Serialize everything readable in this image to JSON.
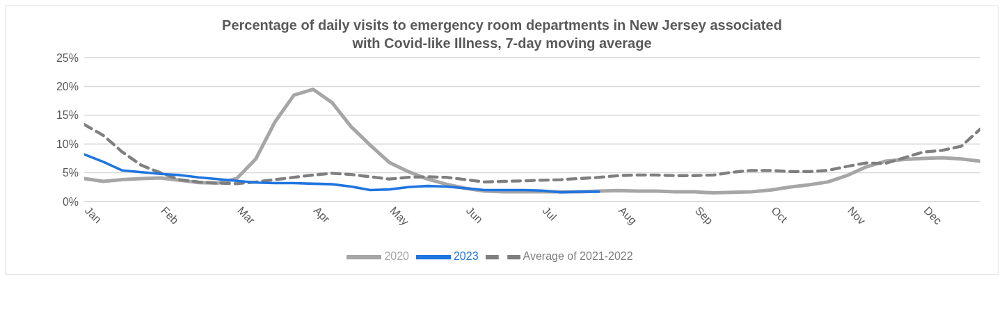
{
  "chart_data": {
    "type": "line",
    "title": "Percentage of daily visits to emergency room departments in New Jersey associated with Covid-like Illness, 7-day moving average",
    "categories": [
      "Jan",
      null,
      null,
      null,
      "Feb",
      null,
      null,
      null,
      "Mar",
      null,
      null,
      null,
      "Apr",
      null,
      null,
      null,
      "May",
      null,
      null,
      null,
      "Jun",
      null,
      null,
      null,
      "Jul",
      null,
      null,
      null,
      "Aug",
      null,
      null,
      null,
      "Sep",
      null,
      null,
      null,
      "Oct",
      null,
      null,
      null,
      "Nov",
      null,
      null,
      null,
      "Dec",
      null,
      null,
      null
    ],
    "ylim": [
      0,
      25
    ],
    "yticks": [
      {
        "value": 0,
        "label": "0%"
      },
      {
        "value": 5,
        "label": "5%"
      },
      {
        "value": 10,
        "label": "10%"
      },
      {
        "value": 15,
        "label": "15%"
      },
      {
        "value": 20,
        "label": "20%"
      },
      {
        "value": 25,
        "label": "25%"
      }
    ],
    "grid": "y",
    "legend": "bottom",
    "marker": "none",
    "series": [
      {
        "name": "2020",
        "color": "#a6a6a6",
        "line_style": "solid",
        "values": [
          4.0,
          3.5,
          3.8,
          4.0,
          4.1,
          3.7,
          3.3,
          3.2,
          4.0,
          7.4,
          13.8,
          18.5,
          19.5,
          17.2,
          13.0,
          9.8,
          6.8,
          5.2,
          3.9,
          3.0,
          2.3,
          1.8,
          1.7,
          1.7,
          1.7,
          1.7,
          1.7,
          1.8,
          1.9,
          1.8,
          1.8,
          1.7,
          1.7,
          1.5,
          1.6,
          1.7,
          2.0,
          2.5,
          2.9,
          3.4,
          4.5,
          6.0,
          7.0,
          7.3,
          7.5,
          7.6,
          7.4,
          7.0
        ]
      },
      {
        "name": "Average of 2021-2022",
        "color": "#7f7f7f",
        "line_style": "dashed",
        "values": [
          13.4,
          11.5,
          8.6,
          6.3,
          5.0,
          3.8,
          3.4,
          3.2,
          3.1,
          3.4,
          3.8,
          4.2,
          4.6,
          4.9,
          4.7,
          4.3,
          3.9,
          4.2,
          4.3,
          4.2,
          3.8,
          3.4,
          3.5,
          3.6,
          3.7,
          3.8,
          4.0,
          4.2,
          4.5,
          4.6,
          4.6,
          4.5,
          4.5,
          4.6,
          5.1,
          5.4,
          5.4,
          5.2,
          5.2,
          5.4,
          6.1,
          6.7,
          6.6,
          7.6,
          8.6,
          8.9,
          9.6,
          12.6
        ]
      },
      {
        "name": "2023",
        "color": "#1f75e0",
        "line_style": "solid",
        "values": [
          8.2,
          6.9,
          5.4,
          5.1,
          4.8,
          4.6,
          4.2,
          3.9,
          3.6,
          3.3,
          3.2,
          3.2,
          3.1,
          3.0,
          2.6,
          2.0,
          2.1,
          2.5,
          2.7,
          2.6,
          2.3,
          2.0,
          2.0,
          2.0,
          1.9,
          1.6,
          1.7,
          1.7,
          null,
          null,
          null,
          null,
          null,
          null,
          null,
          null,
          null,
          null,
          null,
          null,
          null,
          null,
          null,
          null,
          null,
          null,
          null,
          null
        ]
      }
    ]
  }
}
